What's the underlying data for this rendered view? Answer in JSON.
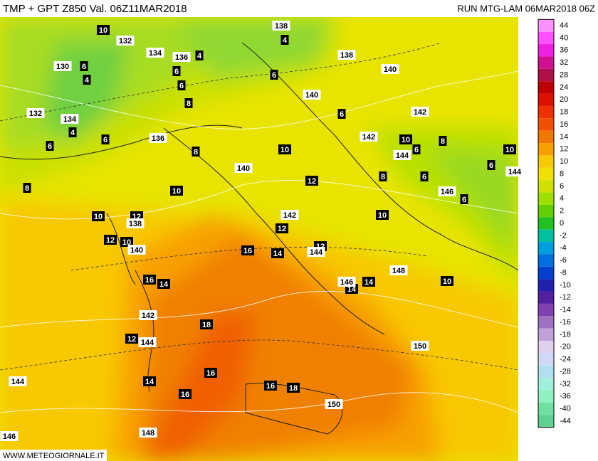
{
  "header": {
    "title": "TMP + GPT Z850 Val. 06Z11MAR2018",
    "run": "RUN MTG-LAM 06MAR2018 06Z"
  },
  "footer": {
    "source": "WWW.METEOGIORNALE.IT"
  },
  "colorbar": {
    "levels": [
      "44",
      "40",
      "36",
      "32",
      "28",
      "24",
      "20",
      "18",
      "16",
      "14",
      "12",
      "10",
      "8",
      "6",
      "4",
      "2",
      "0",
      "-2",
      "-4",
      "-6",
      "-8",
      "-10",
      "-12",
      "-14",
      "-16",
      "-18",
      "-20",
      "-24",
      "-28",
      "-32",
      "-36",
      "-40",
      "-44"
    ],
    "colors": [
      "#ff90ff",
      "#ff50ff",
      "#f020e0",
      "#d01090",
      "#b0104a",
      "#c00000",
      "#e01000",
      "#f03000",
      "#f05000",
      "#f07800",
      "#f8a000",
      "#f8c800",
      "#f0e000",
      "#d0e000",
      "#a0e000",
      "#60d000",
      "#20c020",
      "#00c0a0",
      "#00a0e0",
      "#0070e0",
      "#0040d0",
      "#2020b0",
      "#5020a0",
      "#8040b0",
      "#a070c0",
      "#c0a0d8",
      "#e0d0f0",
      "#d0d8f8",
      "#b0e0f0",
      "#a0f0e0",
      "#90f0c0",
      "#70e0a0",
      "#60d090"
    ]
  },
  "isotherm_labels": [
    "10",
    "4",
    "4",
    "6",
    "4",
    "6",
    "6",
    "6",
    "8",
    "6",
    "4",
    "6",
    "6",
    "8",
    "10",
    "10",
    "8",
    "10",
    "6",
    "6",
    "6",
    "8",
    "6",
    "12",
    "8",
    "10",
    "10",
    "12",
    "10",
    "12",
    "10",
    "12",
    "16",
    "14",
    "12",
    "16",
    "14",
    "14",
    "14",
    "10",
    "18",
    "12",
    "16",
    "14",
    "16",
    "16",
    "18"
  ],
  "height_labels": [
    "138",
    "132",
    "134",
    "136",
    "130",
    "132",
    "134",
    "138",
    "140",
    "140",
    "142",
    "142",
    "144",
    "144",
    "136",
    "140",
    "142",
    "138",
    "140",
    "144",
    "146",
    "148",
    "146",
    "142",
    "144",
    "150",
    "150",
    "144",
    "146",
    "148"
  ]
}
